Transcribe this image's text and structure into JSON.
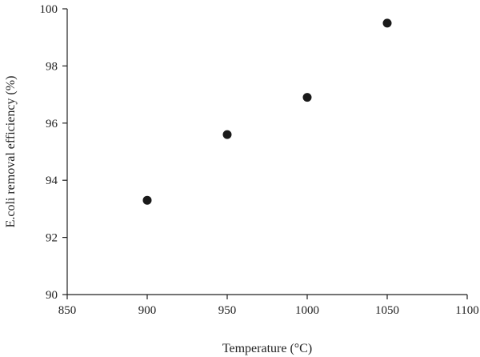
{
  "chart_data": {
    "type": "scatter",
    "title": "",
    "xlabel": "Temperature (°C)",
    "ylabel": "E.coli removal efficiency (%)",
    "xlim": [
      850,
      1100
    ],
    "ylim": [
      90,
      100
    ],
    "xticks": [
      850,
      900,
      950,
      1000,
      1050,
      1100
    ],
    "yticks": [
      90,
      92,
      94,
      96,
      98,
      100
    ],
    "grid": false,
    "legend": "none",
    "marker_color": "#1a1a1a",
    "series": [
      {
        "x": [
          900,
          950,
          1000,
          1050
        ],
        "y": [
          93.3,
          95.6,
          96.9,
          99.5
        ]
      }
    ]
  }
}
